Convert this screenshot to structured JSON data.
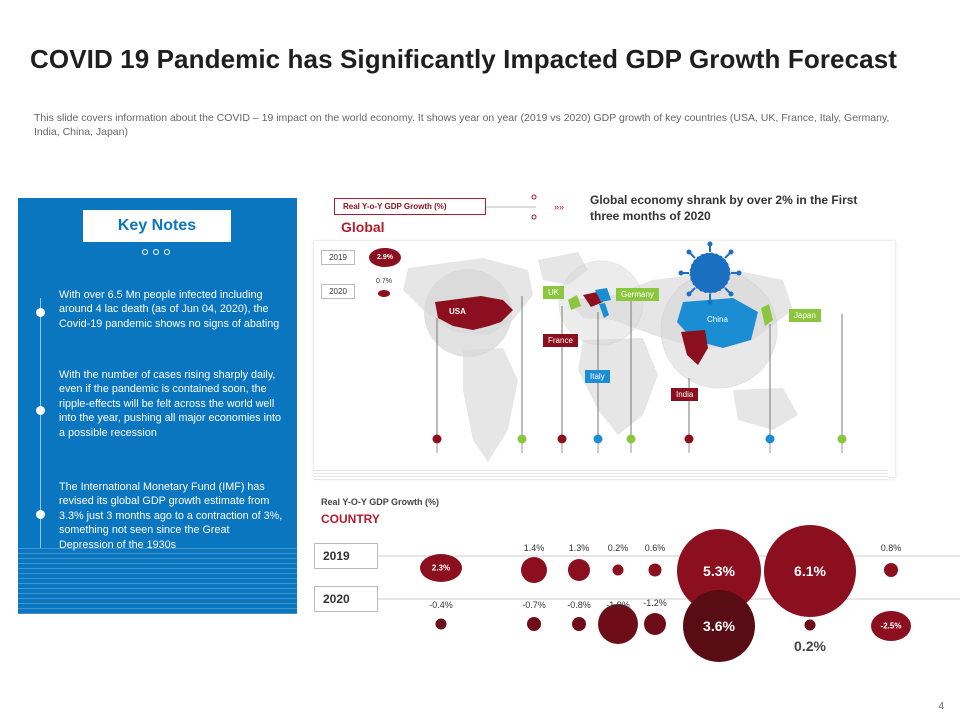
{
  "title": "COVID 19 Pandemic has Significantly Impacted GDP Growth Forecast",
  "subtitle": "This slide covers information about the COVID – 19 impact on the world economy. It shows year on year (2019 vs 2020) GDP growth of key countries (USA, UK, France, Italy,  Germany, India, China, Japan)",
  "key_notes": {
    "heading": "Key Notes",
    "notes": [
      "With over 6.5 Mn people infected including around 4 lac death (as of Jun 04, 2020), the Covid-19 pandemic shows no signs of abating",
      "With the number of cases rising sharply daily, even if the pandemic is contained soon, the ripple-effects will be felt across the world well into the year, pushing all major economies into a possible recession",
      "The International Monetary Fund (IMF) has revised its global GDP growth estimate from 3.3% just 3 months ago to a contraction of 3%, something not seen since the Great Depression of the 1930s"
    ]
  },
  "global_section": {
    "legend_label": "Real Y-o-Y GDP Growth  (%)",
    "label": "Global",
    "headline": "Global economy shrank by over 2%  in the First three months of 2020",
    "years": [
      "2019",
      "2020"
    ],
    "values": [
      "2.9%",
      "0.7%"
    ]
  },
  "map_labels": [
    "USA",
    "UK",
    "Germany",
    "France",
    "Italy",
    "China",
    "Japan",
    "India"
  ],
  "country_section": {
    "subtitle": "Real Y-O-Y GDP Growth (%)",
    "title": "COUNTRY",
    "row_labels": [
      "2019",
      "2020"
    ]
  },
  "chart_data": {
    "type": "bubble",
    "title": "Real Y-O-Y GDP Growth (%)",
    "categories": [
      "USA",
      "UK",
      "France",
      "Italy",
      "Germany",
      "India",
      "China",
      "Japan"
    ],
    "series": [
      {
        "name": "2019",
        "values": [
          2.3,
          1.4,
          1.3,
          0.2,
          0.6,
          5.3,
          6.1,
          0.8
        ],
        "labels": [
          "2.3%",
          "1.4%",
          "1.3%",
          "0.2%",
          "0.6%",
          "5.3%",
          "6.1%",
          "0.8%"
        ]
      },
      {
        "name": "2020",
        "values": [
          -0.4,
          -0.7,
          -0.8,
          -1.9,
          -1.2,
          3.6,
          0.2,
          -2.5
        ],
        "labels": [
          "-0.4%",
          "-0.7%",
          "-0.8%",
          "-1.9%",
          "-1.2%",
          "3.6%",
          "0.2%",
          "-2.5%"
        ]
      }
    ]
  },
  "colors": {
    "accent": "#8b0f1e",
    "blue": "#0b76c0",
    "green": "#8cc63f",
    "light_blue": "#1b8ed3"
  },
  "page_number": "4"
}
